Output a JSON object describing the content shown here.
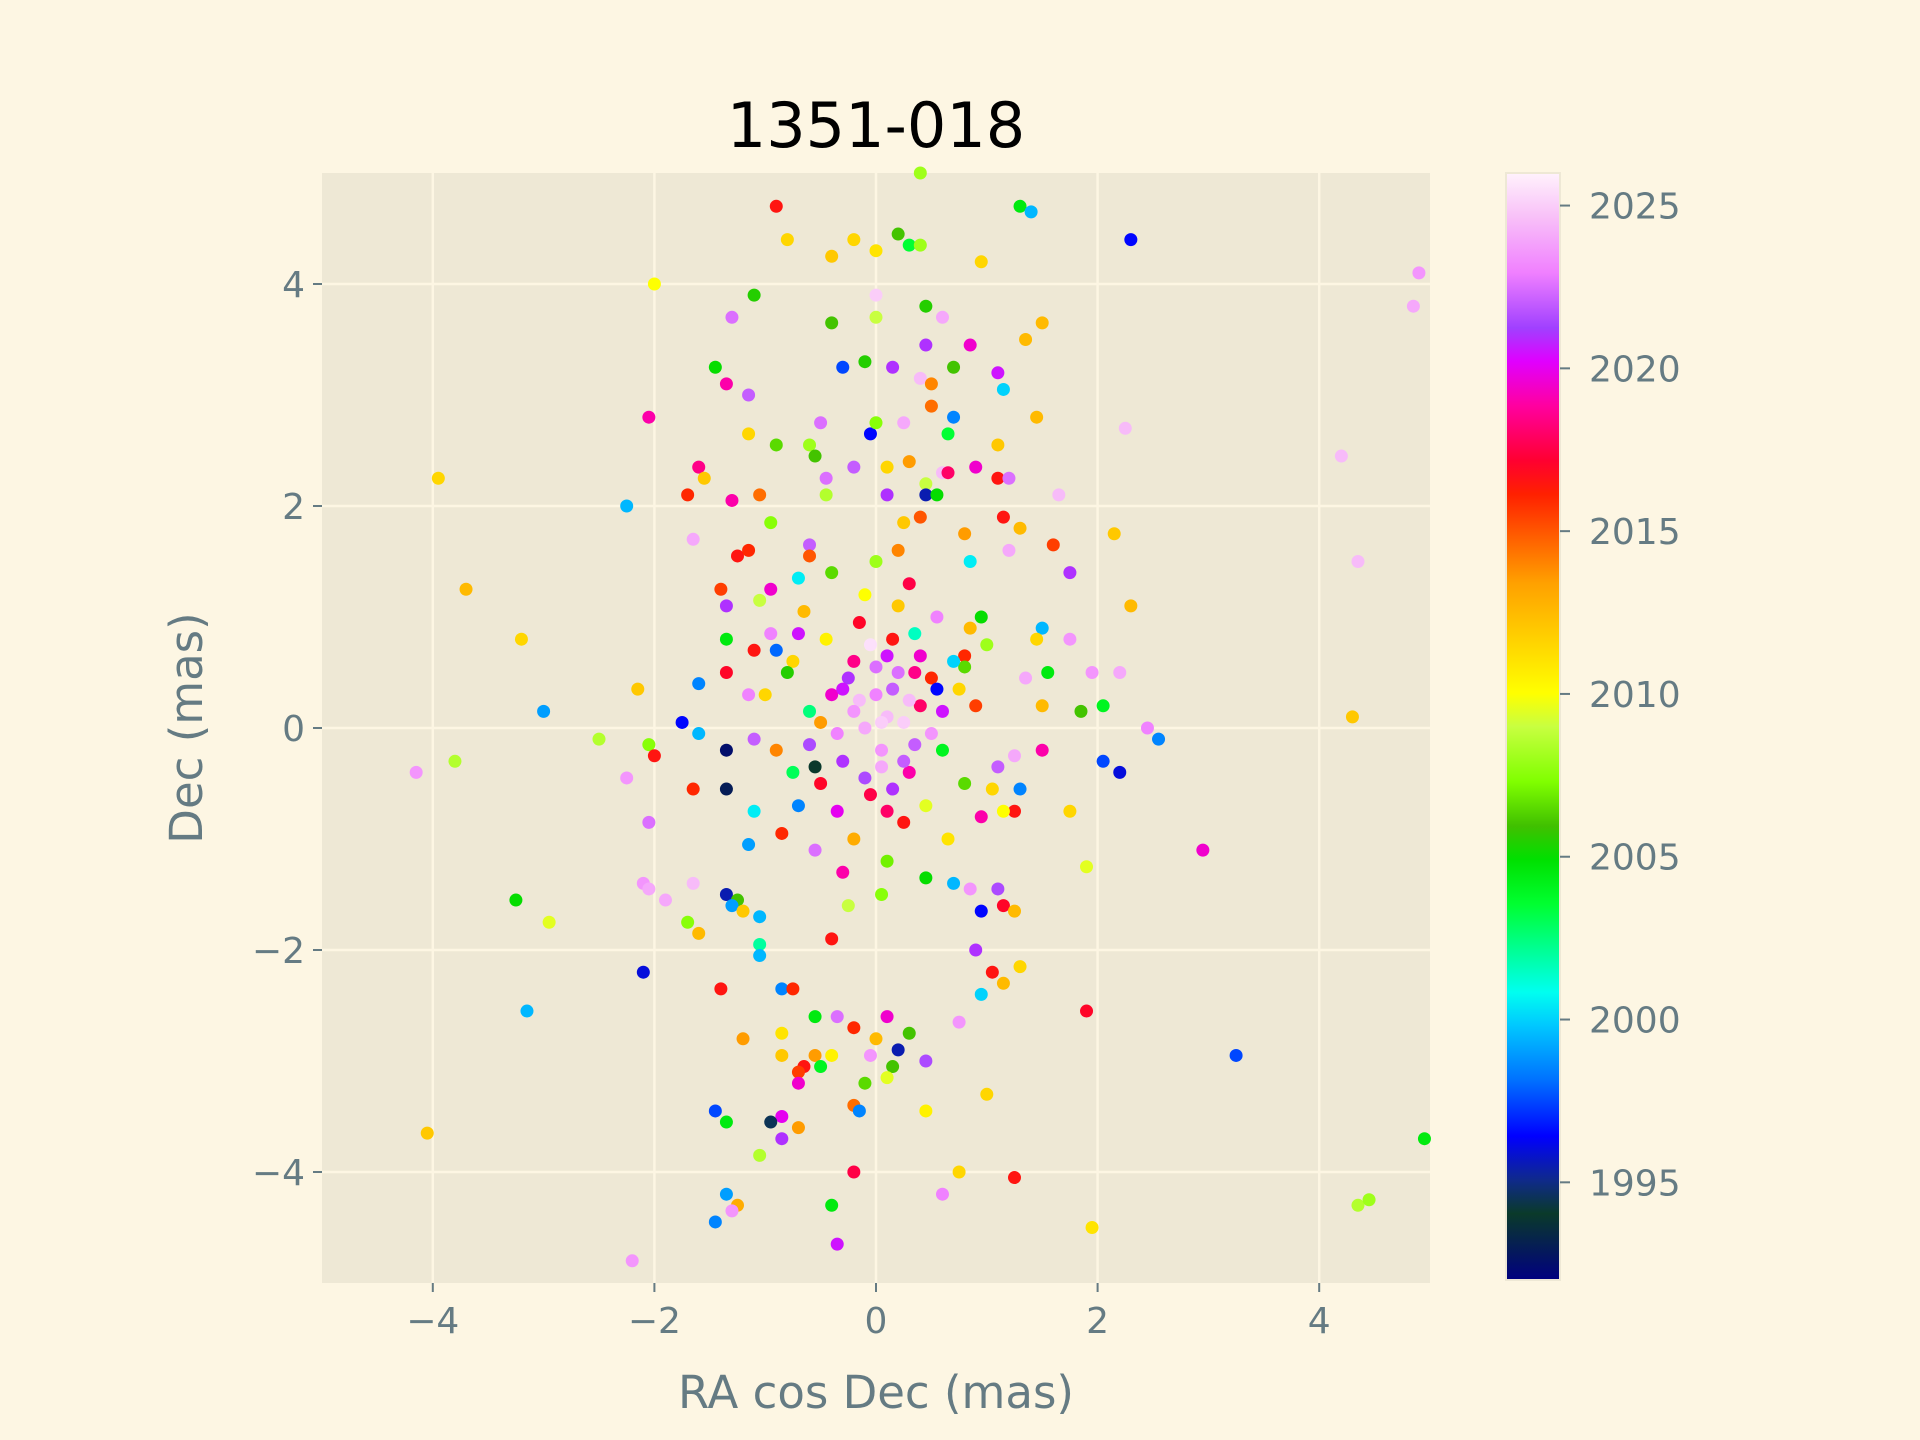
{
  "chart_data": {
    "type": "scatter",
    "title": "1351-018",
    "xlabel": "RA cos Dec (mas)",
    "ylabel": "Dec (mas)",
    "xlim": [
      -5,
      5
    ],
    "ylim": [
      -5,
      5
    ],
    "xticks": [
      -4,
      -2,
      0,
      2,
      4
    ],
    "yticks": [
      -4,
      -2,
      0,
      2,
      4
    ],
    "xtick_labels": [
      "−4",
      "−2",
      "0",
      "2",
      "4"
    ],
    "ytick_labels": [
      "−4",
      "−2",
      "0",
      "2",
      "4"
    ],
    "grid": true,
    "colorbar": {
      "min": 1992,
      "max": 2026,
      "ticks": [
        1995,
        2000,
        2005,
        2010,
        2015,
        2020,
        2025
      ],
      "tick_labels": [
        "1995",
        "2000",
        "2005",
        "2010",
        "2015",
        "2020",
        "2025"
      ],
      "colormap": "gist_ncar"
    },
    "points": [
      [
        -0.9,
        4.7,
        2016.5
      ],
      [
        1.3,
        4.7,
        2004.5
      ],
      [
        1.4,
        4.65,
        1999.5
      ],
      [
        0.4,
        5.0,
        2008.0
      ],
      [
        2.3,
        4.4,
        1996.5
      ],
      [
        4.9,
        4.1,
        2023.5
      ],
      [
        4.85,
        3.8,
        2024.0
      ],
      [
        -2.0,
        4.0,
        2010.0
      ],
      [
        -0.8,
        4.4,
        2011.5
      ],
      [
        -0.4,
        4.25,
        2012.0
      ],
      [
        -0.2,
        4.4,
        2011.5
      ],
      [
        0.0,
        4.3,
        2011.0
      ],
      [
        0.2,
        4.45,
        2006.0
      ],
      [
        0.3,
        4.35,
        2003.5
      ],
      [
        0.4,
        4.35,
        2008.0
      ],
      [
        0.95,
        4.2,
        2011.5
      ],
      [
        -1.1,
        3.9,
        2005.5
      ],
      [
        -1.3,
        3.7,
        2022.5
      ],
      [
        -0.4,
        3.65,
        2006.0
      ],
      [
        0.0,
        3.9,
        2025.0
      ],
      [
        0.0,
        3.7,
        2009.0
      ],
      [
        0.45,
        3.8,
        2005.5
      ],
      [
        0.6,
        3.7,
        2024.0
      ],
      [
        1.5,
        3.65,
        2012.5
      ],
      [
        1.35,
        3.5,
        2012.5
      ],
      [
        0.45,
        3.45,
        2021.0
      ],
      [
        0.85,
        3.45,
        2019.5
      ],
      [
        -1.45,
        3.25,
        2005.0
      ],
      [
        -0.3,
        3.25,
        1997.5
      ],
      [
        -0.1,
        3.3,
        2005.5
      ],
      [
        0.15,
        3.25,
        2021.0
      ],
      [
        0.4,
        3.15,
        2024.5
      ],
      [
        0.5,
        3.1,
        2014.0
      ],
      [
        0.7,
        3.25,
        2006.0
      ],
      [
        1.1,
        3.2,
        2020.5
      ],
      [
        1.15,
        3.05,
        2000.0
      ],
      [
        -1.35,
        3.1,
        2019.0
      ],
      [
        -1.15,
        3.0,
        2022.0
      ],
      [
        -2.05,
        2.8,
        2019.0
      ],
      [
        0.5,
        2.9,
        2014.5
      ],
      [
        0.7,
        2.8,
        1998.5
      ],
      [
        1.45,
        2.8,
        2012.5
      ],
      [
        -0.5,
        2.75,
        2022.5
      ],
      [
        -0.05,
        2.65,
        1996.5
      ],
      [
        0.0,
        2.75,
        2007.5
      ],
      [
        0.25,
        2.75,
        2024.0
      ],
      [
        0.65,
        2.65,
        2003.5
      ],
      [
        2.25,
        2.7,
        2024.5
      ],
      [
        4.2,
        2.45,
        2024.5
      ],
      [
        -1.15,
        2.65,
        2011.5
      ],
      [
        -0.9,
        2.55,
        2006.5
      ],
      [
        -0.6,
        2.55,
        2008.0
      ],
      [
        -0.55,
        2.45,
        2006.0
      ],
      [
        1.1,
        2.55,
        2012.0
      ],
      [
        -3.95,
        2.25,
        2011.5
      ],
      [
        -1.6,
        2.35,
        2018.5
      ],
      [
        -1.55,
        2.25,
        2012.0
      ],
      [
        -1.7,
        2.1,
        2016.0
      ],
      [
        -2.25,
        2.0,
        1999.5
      ],
      [
        -1.3,
        2.05,
        2019.0
      ],
      [
        -1.05,
        2.1,
        2014.5
      ],
      [
        -0.45,
        2.25,
        2022.5
      ],
      [
        -0.2,
        2.35,
        2022.0
      ],
      [
        0.1,
        2.35,
        2011.5
      ],
      [
        0.3,
        2.4,
        2013.5
      ],
      [
        0.45,
        2.2,
        2009.0
      ],
      [
        0.6,
        2.3,
        2024.5
      ],
      [
        0.65,
        2.3,
        2018.0
      ],
      [
        0.9,
        2.35,
        2019.5
      ],
      [
        1.1,
        2.25,
        2016.5
      ],
      [
        1.2,
        2.25,
        2022.5
      ],
      [
        0.45,
        2.1,
        1995.5
      ],
      [
        0.55,
        2.1,
        2005.0
      ],
      [
        -0.45,
        2.1,
        2008.5
      ],
      [
        0.1,
        2.1,
        2021.0
      ],
      [
        1.65,
        2.1,
        2024.5
      ],
      [
        -1.65,
        1.7,
        2024.0
      ],
      [
        -1.25,
        1.55,
        2016.5
      ],
      [
        -1.15,
        1.6,
        2016.0
      ],
      [
        -0.95,
        1.85,
        2007.5
      ],
      [
        -0.6,
        1.65,
        2022.0
      ],
      [
        -0.6,
        1.55,
        2015.0
      ],
      [
        0.25,
        1.85,
        2012.0
      ],
      [
        0.8,
        1.75,
        2013.5
      ],
      [
        1.15,
        1.9,
        2016.5
      ],
      [
        1.3,
        1.8,
        2012.5
      ],
      [
        1.6,
        1.65,
        2015.5
      ],
      [
        2.15,
        1.75,
        2012.0
      ],
      [
        0.85,
        1.5,
        2000.5
      ],
      [
        1.2,
        1.6,
        2024.0
      ],
      [
        4.35,
        1.5,
        2024.5
      ],
      [
        1.75,
        1.4,
        2021.0
      ],
      [
        -3.7,
        1.25,
        2012.5
      ],
      [
        -1.4,
        1.25,
        2015.5
      ],
      [
        -0.95,
        1.25,
        2019.5
      ],
      [
        -1.35,
        1.1,
        2021.0
      ],
      [
        -1.05,
        1.15,
        2009.0
      ],
      [
        2.3,
        1.1,
        2012.5
      ],
      [
        0.95,
        1.0,
        2005.0
      ],
      [
        -3.2,
        0.8,
        2011.5
      ],
      [
        -1.35,
        0.8,
        2004.5
      ],
      [
        -0.7,
        0.85,
        2020.5
      ],
      [
        1.5,
        0.9,
        1999.5
      ],
      [
        1.45,
        0.8,
        2011.5
      ],
      [
        1.75,
        0.8,
        2023.5
      ],
      [
        1.0,
        0.75,
        2008.0
      ],
      [
        -1.1,
        0.7,
        2016.5
      ],
      [
        -0.9,
        0.7,
        1998.0
      ],
      [
        -0.75,
        0.6,
        2011.5
      ],
      [
        0.8,
        0.65,
        2016.0
      ],
      [
        0.8,
        0.55,
        2006.5
      ],
      [
        -1.35,
        0.5,
        2017.0
      ],
      [
        1.55,
        0.5,
        2004.5
      ],
      [
        1.95,
        0.5,
        2023.5
      ],
      [
        2.2,
        0.5,
        2024.0
      ],
      [
        -1.6,
        0.4,
        1998.5
      ],
      [
        -2.15,
        0.35,
        2012.0
      ],
      [
        -1.15,
        0.3,
        2023.0
      ],
      [
        -1.0,
        0.3,
        2011.5
      ],
      [
        1.35,
        0.45,
        2024.0
      ],
      [
        1.5,
        0.2,
        2012.5
      ],
      [
        1.85,
        0.15,
        2006.0
      ],
      [
        2.05,
        0.2,
        2004.0
      ],
      [
        4.3,
        0.1,
        2012.0
      ],
      [
        -3.0,
        0.15,
        1999.0
      ],
      [
        -1.75,
        0.05,
        1996.5
      ],
      [
        -1.6,
        -0.05,
        1999.5
      ],
      [
        -2.5,
        -0.1,
        2008.5
      ],
      [
        -2.05,
        -0.15,
        2007.5
      ],
      [
        -2.0,
        -0.25,
        2016.5
      ],
      [
        -1.35,
        -0.2,
        1992.5
      ],
      [
        -1.1,
        -0.1,
        2022.0
      ],
      [
        -4.15,
        -0.4,
        2023.5
      ],
      [
        -3.8,
        -0.3,
        2008.5
      ],
      [
        -2.25,
        -0.45,
        2023.5
      ],
      [
        -1.65,
        -0.55,
        2016.0
      ],
      [
        -1.35,
        -0.55,
        1993.0
      ],
      [
        2.45,
        0.0,
        2023.0
      ],
      [
        2.55,
        -0.1,
        1998.5
      ],
      [
        1.5,
        -0.2,
        2019.0
      ],
      [
        1.25,
        -0.25,
        2024.0
      ],
      [
        1.1,
        -0.35,
        2022.0
      ],
      [
        2.05,
        -0.3,
        1997.5
      ],
      [
        2.2,
        -0.4,
        1996.0
      ],
      [
        1.3,
        -0.55,
        1998.5
      ],
      [
        1.05,
        -0.55,
        2011.5
      ],
      [
        1.25,
        -0.75,
        2016.5
      ],
      [
        1.15,
        -0.75,
        2010.0
      ],
      [
        1.75,
        -0.75,
        2011.5
      ],
      [
        -2.05,
        -0.85,
        2022.5
      ],
      [
        -1.1,
        -0.75,
        2000.5
      ],
      [
        -1.15,
        -1.05,
        1999.0
      ],
      [
        2.95,
        -1.1,
        2019.5
      ],
      [
        1.9,
        -1.25,
        2009.5
      ],
      [
        -2.1,
        -1.4,
        2023.5
      ],
      [
        -2.05,
        -1.45,
        2024.0
      ],
      [
        -1.65,
        -1.4,
        2024.5
      ],
      [
        -1.9,
        -1.55,
        2024.0
      ],
      [
        -3.25,
        -1.55,
        2005.0
      ],
      [
        -1.35,
        -1.5,
        1995.5
      ],
      [
        -1.25,
        -1.55,
        2006.0
      ],
      [
        -1.3,
        -1.6,
        1999.0
      ],
      [
        -1.2,
        -1.65,
        2012.0
      ],
      [
        -1.7,
        -1.75,
        2007.5
      ],
      [
        -2.95,
        -1.75,
        2009.5
      ],
      [
        -1.05,
        -1.7,
        1999.5
      ],
      [
        1.1,
        -1.45,
        2021.5
      ],
      [
        1.15,
        -1.6,
        2017.0
      ],
      [
        1.25,
        -1.65,
        2012.5
      ],
      [
        0.95,
        -1.65,
        1996.5
      ],
      [
        0.85,
        -1.45,
        2023.5
      ],
      [
        -1.6,
        -1.85,
        2012.5
      ],
      [
        -1.05,
        -1.95,
        2002.0
      ],
      [
        -1.05,
        -2.05,
        1999.5
      ],
      [
        -2.1,
        -2.2,
        1996.0
      ],
      [
        -1.4,
        -2.35,
        2016.5
      ],
      [
        -0.85,
        -2.35,
        1998.5
      ],
      [
        -0.75,
        -2.35,
        2016.0
      ],
      [
        0.9,
        -2.0,
        2021.0
      ],
      [
        1.05,
        -2.2,
        2016.5
      ],
      [
        1.15,
        -2.3,
        2012.5
      ],
      [
        1.3,
        -2.15,
        2011.5
      ],
      [
        0.95,
        -2.4,
        2000.0
      ],
      [
        -3.15,
        -2.55,
        1999.5
      ],
      [
        -0.55,
        -2.6,
        2004.5
      ],
      [
        -0.35,
        -2.6,
        2022.5
      ],
      [
        0.1,
        -2.6,
        2019.5
      ],
      [
        0.75,
        -2.65,
        2023.5
      ],
      [
        1.9,
        -2.55,
        2017.0
      ],
      [
        -1.2,
        -2.8,
        2013.5
      ],
      [
        -0.85,
        -2.75,
        2011.0
      ],
      [
        -0.2,
        -2.7,
        2016.0
      ],
      [
        0.3,
        -2.75,
        2006.0
      ],
      [
        0.0,
        -2.8,
        2012.5
      ],
      [
        -0.85,
        -2.95,
        2012.0
      ],
      [
        -0.55,
        -2.95,
        2013.5
      ],
      [
        -0.4,
        -2.95,
        2010.5
      ],
      [
        -0.05,
        -2.95,
        2023.5
      ],
      [
        0.2,
        -2.9,
        1995.5
      ],
      [
        3.25,
        -2.95,
        1997.5
      ],
      [
        0.45,
        -3.0,
        2021.5
      ],
      [
        -0.5,
        -3.05,
        2004.0
      ],
      [
        -0.65,
        -3.05,
        2016.5
      ],
      [
        -0.7,
        -3.1,
        2015.5
      ],
      [
        -0.7,
        -3.2,
        2019.5
      ],
      [
        0.15,
        -3.05,
        2006.0
      ],
      [
        0.1,
        -3.15,
        2009.5
      ],
      [
        -0.1,
        -3.2,
        2006.5
      ],
      [
        1.0,
        -3.3,
        2011.5
      ],
      [
        -0.2,
        -3.4,
        2014.5
      ],
      [
        -0.15,
        -3.45,
        1998.5
      ],
      [
        0.45,
        -3.45,
        2010.5
      ],
      [
        -0.85,
        -3.5,
        2020.0
      ],
      [
        -1.45,
        -3.45,
        1997.5
      ],
      [
        -1.35,
        -3.55,
        2004.5
      ],
      [
        -0.95,
        -3.55,
        1994.5
      ],
      [
        -0.7,
        -3.6,
        2013.5
      ],
      [
        -0.85,
        -3.7,
        2021.0
      ],
      [
        4.95,
        -3.7,
        2004.5
      ],
      [
        -4.05,
        -3.65,
        2012.0
      ],
      [
        -1.05,
        -3.85,
        2008.5
      ],
      [
        0.75,
        -4.0,
        2011.5
      ],
      [
        -0.2,
        -4.0,
        2017.5
      ],
      [
        1.25,
        -4.05,
        2016.5
      ],
      [
        0.6,
        -4.2,
        2023.0
      ],
      [
        -1.35,
        -4.2,
        1999.0
      ],
      [
        -1.25,
        -4.3,
        2013.0
      ],
      [
        -1.45,
        -4.45,
        1998.5
      ],
      [
        -1.3,
        -4.35,
        2023.5
      ],
      [
        -0.4,
        -4.3,
        2004.5
      ],
      [
        4.35,
        -4.3,
        2008.5
      ],
      [
        4.45,
        -4.25,
        2008.0
      ],
      [
        1.95,
        -4.5,
        2011.0
      ],
      [
        -0.35,
        -4.65,
        2020.5
      ],
      [
        -2.2,
        -4.8,
        2023.5
      ],
      [
        0.0,
        0.3,
        2023.0
      ],
      [
        0.1,
        0.1,
        2024.5
      ],
      [
        -0.1,
        0.0,
        2024.0
      ],
      [
        0.05,
        -0.2,
        2023.5
      ],
      [
        0.2,
        0.5,
        2022.5
      ],
      [
        -0.2,
        0.6,
        2018.5
      ],
      [
        0.3,
        -0.4,
        2019.0
      ],
      [
        -0.3,
        -0.3,
        2021.0
      ],
      [
        0.15,
        0.8,
        2016.5
      ],
      [
        -0.05,
        -0.6,
        2017.5
      ],
      [
        0.4,
        0.2,
        2018.0
      ],
      [
        -0.4,
        0.3,
        2019.5
      ],
      [
        0.25,
        0.05,
        2025.0
      ],
      [
        -0.15,
        0.25,
        2024.5
      ],
      [
        0.35,
        -0.15,
        2022.0
      ],
      [
        -0.35,
        -0.05,
        2023.0
      ],
      [
        0.1,
        0.65,
        2020.5
      ],
      [
        -0.1,
        -0.45,
        2021.5
      ],
      [
        0.5,
        0.45,
        2016.0
      ],
      [
        -0.5,
        -0.5,
        2017.0
      ],
      [
        0.6,
        -0.2,
        2004.0
      ],
      [
        -0.6,
        0.15,
        2002.5
      ],
      [
        0.45,
        -0.7,
        2009.5
      ],
      [
        -0.45,
        0.8,
        2010.5
      ],
      [
        0.2,
        1.1,
        2012.0
      ],
      [
        -0.2,
        -1.0,
        2013.0
      ],
      [
        0.7,
        0.6,
        2000.0
      ],
      [
        -0.7,
        -0.7,
        1998.5
      ],
      [
        0.8,
        -0.5,
        2006.5
      ],
      [
        -0.8,
        0.5,
        2005.5
      ],
      [
        0.3,
        1.3,
        2017.5
      ],
      [
        -0.3,
        -1.3,
        2019.0
      ],
      [
        0.55,
        1.0,
        2023.0
      ],
      [
        -0.55,
        -1.1,
        2022.5
      ],
      [
        0.9,
        0.2,
        2015.5
      ],
      [
        -0.9,
        -0.2,
        2014.0
      ],
      [
        0.0,
        1.5,
        2008.0
      ],
      [
        0.05,
        -1.5,
        2007.5
      ],
      [
        0.65,
        -1.0,
        2011.0
      ],
      [
        -0.65,
        1.05,
        2012.5
      ],
      [
        0.15,
        0.35,
        2022.0
      ],
      [
        -0.25,
        0.45,
        2021.0
      ],
      [
        0.05,
        -0.35,
        2024.0
      ],
      [
        0.4,
        0.65,
        2019.5
      ],
      [
        -0.35,
        -0.75,
        2020.0
      ],
      [
        0.25,
        -0.85,
        2016.5
      ],
      [
        -0.15,
        0.95,
        2017.0
      ],
      [
        0.5,
        -0.05,
        2023.5
      ],
      [
        -0.5,
        0.05,
        2013.5
      ],
      [
        0.75,
        0.35,
        2011.5
      ],
      [
        -0.75,
        -0.4,
        2003.0
      ],
      [
        0.35,
        0.85,
        2001.5
      ],
      [
        -0.05,
        0.75,
        2025.5
      ],
      [
        0.1,
        -0.75,
        2018.0
      ],
      [
        0.6,
        0.15,
        2020.5
      ],
      [
        -0.6,
        -0.15,
        2021.5
      ],
      [
        0.2,
        1.6,
        2014.0
      ],
      [
        -0.25,
        -1.6,
        2009.0
      ],
      [
        0.45,
        -1.35,
        2005.0
      ],
      [
        -0.4,
        1.4,
        2006.5
      ],
      [
        0.85,
        0.9,
        2012.5
      ],
      [
        -0.85,
        -0.95,
        2016.0
      ],
      [
        0.95,
        -0.8,
        2019.0
      ],
      [
        -0.95,
        0.85,
        2023.0
      ],
      [
        0.3,
        0.25,
        2024.5
      ],
      [
        -0.2,
        0.15,
        2023.5
      ],
      [
        0.0,
        0.55,
        2022.5
      ],
      [
        0.15,
        -0.55,
        2021.0
      ],
      [
        -0.1,
        1.2,
        2010.0
      ],
      [
        0.1,
        -1.2,
        2007.0
      ],
      [
        0.7,
        -1.4,
        1999.5
      ],
      [
        -0.7,
        1.35,
        2000.5
      ],
      [
        0.4,
        1.9,
        2015.0
      ],
      [
        -0.4,
        -1.9,
        2016.5
      ],
      [
        0.55,
        0.35,
        1996.5
      ],
      [
        -0.55,
        -0.35,
        1994.0
      ],
      [
        0.25,
        -0.3,
        2022.0
      ],
      [
        -0.3,
        0.35,
        2020.5
      ],
      [
        0.05,
        0.05,
        2025.0
      ],
      [
        0.35,
        0.5,
        2018.5
      ]
    ]
  }
}
